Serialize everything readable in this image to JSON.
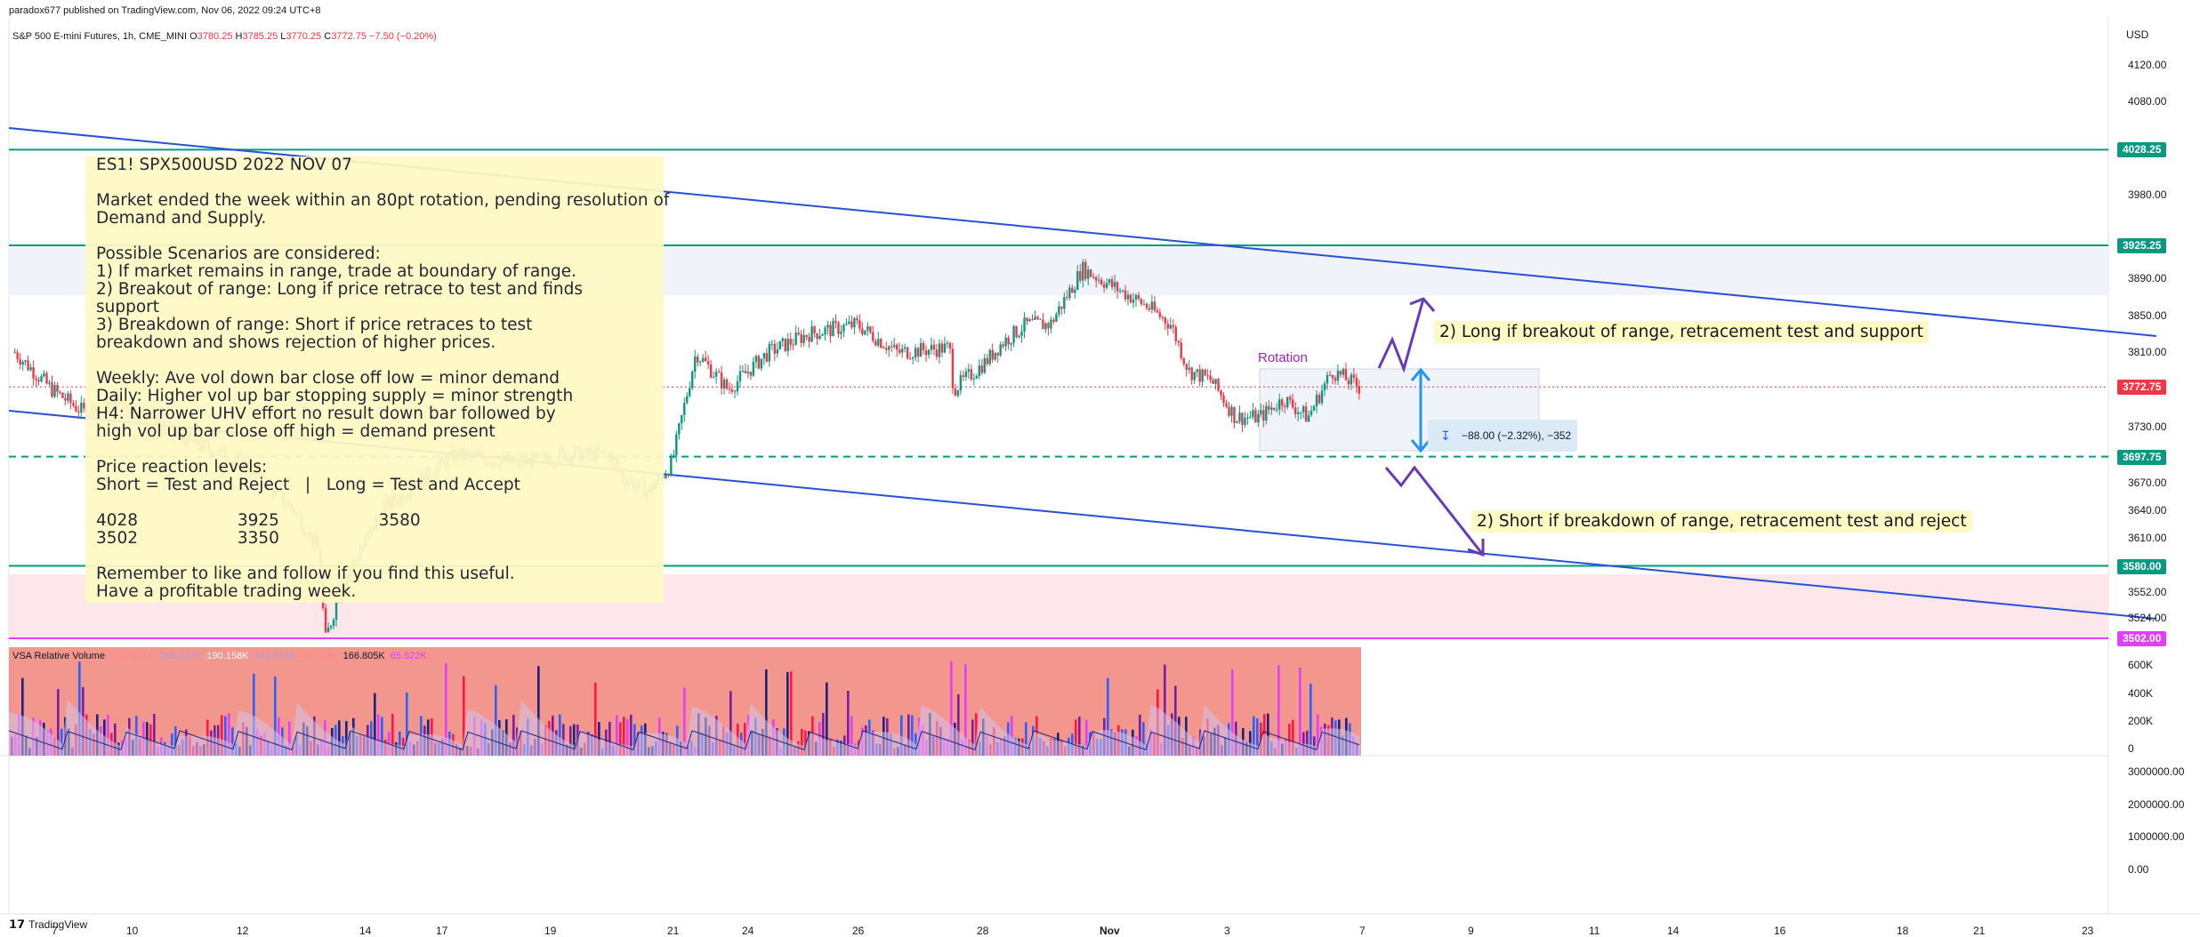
{
  "header": {
    "publisher_line": "paradox677 published on TradingView.com, Nov 06, 2022 09:24 UTC+8",
    "symbol": "S&P 500 E-mini Futures, 1h, CME_MINI",
    "ohlc": {
      "o_label": "O",
      "o": "3780.25",
      "h_label": "H",
      "h": "3785.25",
      "l_label": "L",
      "l": "3770.25",
      "c_label": "C",
      "c": "3772.75",
      "change": "−7.50 (−0.20%)"
    }
  },
  "price_axis": {
    "currency": "USD",
    "ticks": [
      "4120.00",
      "4080.00",
      "3980.00",
      "3890.00",
      "3850.00",
      "3810.00",
      "3730.00",
      "3670.00",
      "3640.00",
      "3610.00",
      "3552.00",
      "3524.00"
    ],
    "tags": [
      {
        "label": "4028.25",
        "color": "#089981"
      },
      {
        "label": "3925.25",
        "color": "#089981"
      },
      {
        "label": "3772.75",
        "color": "#f23645"
      },
      {
        "label": "3697.75",
        "color": "#089981"
      },
      {
        "label": "3580.00",
        "color": "#089981"
      },
      {
        "label": "3502.00",
        "color": "#e040fb"
      }
    ]
  },
  "volume_axis": {
    "ticks": [
      "600K",
      "400K",
      "200K",
      "0"
    ]
  },
  "lower_axis": {
    "ticks": [
      "3000000.00",
      "2000000.00",
      "1000000.00",
      "0.00"
    ]
  },
  "time_axis": {
    "ticks": [
      "7",
      "10",
      "12",
      "14",
      "17",
      "19",
      "21",
      "24",
      "26",
      "28",
      "Nov",
      "3",
      "7",
      "9",
      "11",
      "14",
      "16",
      "18",
      "21",
      "23"
    ]
  },
  "note": {
    "lines": [
      "ES1! SPX500USD 2022 NOV 07",
      "",
      "Market ended the week within an 80pt rotation, pending resolution of",
      "Demand and Supply.",
      "",
      "Possible Scenarios are considered:",
      "1) If market remains in range, trade at boundary of range.",
      "2) Breakout of range: Long if price retrace to test and finds",
      "support",
      "3) Breakdown of range: Short if price retraces to test",
      "breakdown and shows rejection of higher prices.",
      "",
      "Weekly: Ave vol down bar close off low = minor demand",
      "Daily: Higher vol up bar stopping supply = minor strength",
      "H4: Narrower UHV effort no result down bar followed by",
      "high vol up bar close off high = demand present",
      "",
      "Price reaction levels:",
      "Short = Test and Reject   |   Long = Test and Accept",
      "",
      "4028                   3925                   3580",
      "3502                   3350",
      "",
      "Remember to like and follow if you find this useful.",
      "Have a profitable trading week."
    ]
  },
  "callouts": {
    "long": "2) Long if breakout of range, retracement test and support",
    "short": "2) Short if breakdown of range, retracement test and reject",
    "rotation": "Rotation"
  },
  "measure": {
    "text": "−88.00 (−2.32%), −352"
  },
  "vsa": {
    "title": "VSA Relative Volume",
    "values": [
      {
        "v": "333.611K",
        "color": "#ff8a80"
      },
      {
        "v": "285.337K",
        "color": "#b39ddb"
      },
      {
        "v": "190.158K",
        "color": "#ffffff"
      },
      {
        "v": "141.794K",
        "color": "#b39ddb"
      },
      {
        "v": "46.705K",
        "color": "#ff8a80"
      },
      {
        "v": "166.805K",
        "color": "#131722"
      },
      {
        "v": "65.522K",
        "color": "#e040fb"
      }
    ]
  },
  "footer": {
    "brand": "TradingView"
  },
  "colors": {
    "up": "#089981",
    "down": "#f23645",
    "trend": "#2950d6",
    "arrow": "#673ab7",
    "double_arrow": "#2196f3"
  }
}
